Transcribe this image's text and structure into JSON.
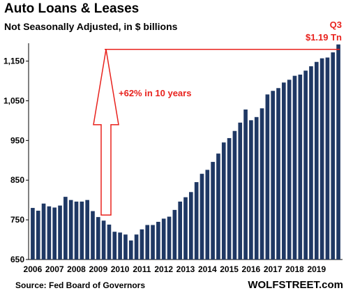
{
  "chart_data": {
    "type": "bar",
    "title": "Auto Loans & Leases",
    "subtitle": "Not Seasonally Adjusted, in $ billions",
    "xlabel": "",
    "ylabel": "",
    "ylim": [
      650,
      1195
    ],
    "yticks": [
      650,
      750,
      850,
      950,
      "1,050",
      "1,150"
    ],
    "xtick_labels": [
      "2006",
      "2007",
      "2008",
      "2009",
      "2010",
      "2011",
      "2012",
      "2013",
      "2014",
      "2015",
      "2016",
      "2017",
      "2018",
      "2019"
    ],
    "bar_color": "#1f3864",
    "annotation_color": "#e8221d",
    "values": [
      780,
      773,
      791,
      784,
      781,
      786,
      808,
      800,
      796,
      796,
      800,
      772,
      757,
      748,
      738,
      720,
      718,
      713,
      698,
      713,
      726,
      737,
      737,
      745,
      753,
      758,
      775,
      796,
      807,
      820,
      845,
      866,
      876,
      896,
      917,
      945,
      956,
      974,
      995,
      1028,
      1001,
      1009,
      1031,
      1066,
      1075,
      1082,
      1096,
      1103,
      1113,
      1116,
      1126,
      1137,
      1148,
      1157,
      1159,
      1172,
      1192
    ],
    "annotations": {
      "growth": "+62% in 10 years",
      "latest_quarter": "Q3",
      "latest_value": "$1.19 Tn"
    }
  },
  "source": "Source: Fed Board of Governors",
  "watermark": "WOLFSTREET.com"
}
